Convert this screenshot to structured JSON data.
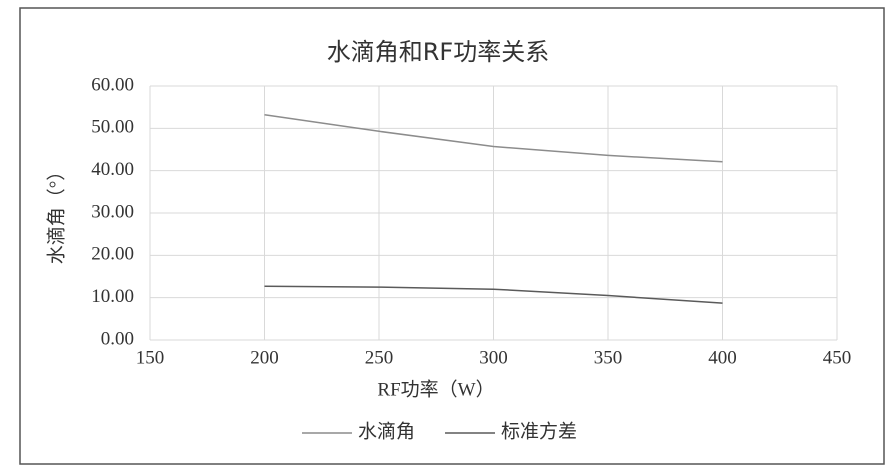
{
  "chart_data": {
    "type": "line",
    "title": "水滴角和RF功率关系",
    "x_label": "RF功率（W）",
    "y_label": "水滴角（°）",
    "x": [
      200,
      250,
      300,
      350,
      400
    ],
    "series": [
      {
        "name": "水滴角",
        "color": "#8c8c8c",
        "values": [
          53.2,
          49.3,
          45.7,
          43.6,
          42.1
        ]
      },
      {
        "name": "标准方差",
        "color": "#5a5a5a",
        "values": [
          12.7,
          12.5,
          12.0,
          10.5,
          8.7
        ]
      }
    ],
    "xlim": [
      150,
      450
    ],
    "xticks": [
      150,
      200,
      250,
      300,
      350,
      400,
      450
    ],
    "ylim": [
      0,
      60
    ],
    "yticks": [
      {
        "value": 0,
        "label": "0.00"
      },
      {
        "value": 10,
        "label": "10.00"
      },
      {
        "value": 20,
        "label": "20.00"
      },
      {
        "value": 30,
        "label": "30.00"
      },
      {
        "value": 40,
        "label": "40.00"
      },
      {
        "value": 50,
        "label": "50.00"
      },
      {
        "value": 60,
        "label": "60.00"
      }
    ],
    "grid": true,
    "legend": "bottom"
  }
}
